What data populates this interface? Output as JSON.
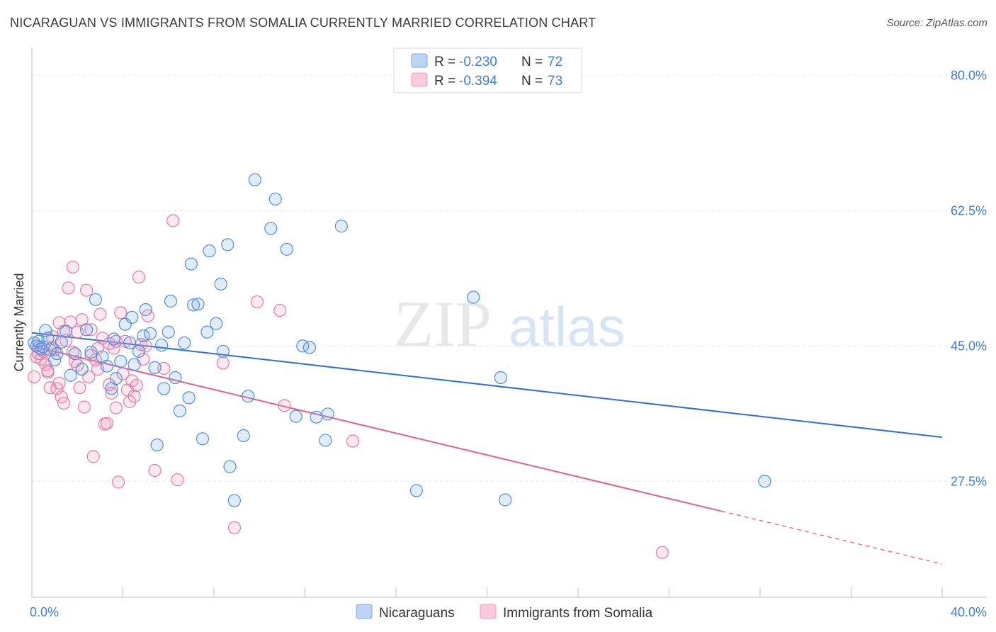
{
  "title": "NICARAGUAN VS IMMIGRANTS FROM SOMALIA CURRENTLY MARRIED CORRELATION CHART",
  "source": "Source: ZipAtlas.com",
  "watermark": {
    "zip": "ZIP",
    "atlas": "atlas"
  },
  "colors": {
    "blue": "#4f8fe0",
    "blue_fill": "rgba(120,170,235,0.22)",
    "blue_line": "#2f6fd0",
    "pink": "#e87aa0",
    "pink_fill": "rgba(240,150,185,0.22)",
    "pink_line": "#e0608e"
  },
  "legend": {
    "r_label": "R =",
    "n_label": "N =",
    "blue": {
      "r": "-0.230",
      "n": "72"
    },
    "pink": {
      "r": "-0.394",
      "n": "73"
    }
  },
  "chart_data": {
    "type": "scatter",
    "title": "NICARAGUAN VS IMMIGRANTS FROM SOMALIA CURRENTLY MARRIED CORRELATION CHART",
    "xlabel": "",
    "ylabel": "Currently Married",
    "xlim": [
      0,
      40
    ],
    "ylim": [
      12.5,
      82.5
    ],
    "x_tick_labels": [
      "0.0%",
      "40.0%"
    ],
    "y_ticks": [
      27.5,
      45.0,
      62.5,
      80.0
    ],
    "y_tick_labels": [
      "27.5%",
      "45.0%",
      "62.5%",
      "80.0%"
    ],
    "grid": true,
    "legend_position": "top-center",
    "series": [
      {
        "name": "Nicaraguans",
        "trend": {
          "x0": 0,
          "y0": 46.7,
          "x1": 40,
          "y1": 33.2,
          "solid_until": 40
        },
        "points": [
          [
            0.1,
            45.4
          ],
          [
            0.2,
            45.0
          ],
          [
            0.3,
            45.6
          ],
          [
            0.4,
            44.6
          ],
          [
            0.5,
            44.9
          ],
          [
            0.6,
            47.0
          ],
          [
            0.7,
            46.0
          ],
          [
            0.8,
            44.5
          ],
          [
            1.0,
            43.2
          ],
          [
            1.1,
            44.0
          ],
          [
            1.3,
            45.5
          ],
          [
            1.5,
            46.9
          ],
          [
            1.7,
            41.2
          ],
          [
            1.9,
            44.0
          ],
          [
            2.2,
            42.0
          ],
          [
            2.4,
            47.1
          ],
          [
            2.6,
            44.2
          ],
          [
            2.8,
            51.0
          ],
          [
            3.1,
            43.6
          ],
          [
            3.3,
            42.4
          ],
          [
            3.5,
            39.5
          ],
          [
            3.6,
            45.9
          ],
          [
            3.7,
            40.8
          ],
          [
            3.9,
            43.0
          ],
          [
            4.1,
            47.8
          ],
          [
            4.3,
            45.4
          ],
          [
            4.4,
            48.7
          ],
          [
            4.5,
            42.6
          ],
          [
            4.7,
            44.3
          ],
          [
            4.9,
            46.3
          ],
          [
            5.0,
            49.7
          ],
          [
            5.2,
            46.6
          ],
          [
            5.4,
            42.2
          ],
          [
            5.5,
            32.2
          ],
          [
            5.7,
            45.1
          ],
          [
            5.8,
            39.5
          ],
          [
            6.0,
            46.8
          ],
          [
            6.1,
            50.8
          ],
          [
            6.3,
            40.9
          ],
          [
            6.5,
            36.6
          ],
          [
            6.7,
            45.4
          ],
          [
            6.9,
            38.3
          ],
          [
            7.0,
            55.6
          ],
          [
            7.1,
            50.3
          ],
          [
            7.3,
            50.4
          ],
          [
            7.5,
            33.0
          ],
          [
            7.7,
            46.8
          ],
          [
            7.8,
            57.3
          ],
          [
            8.1,
            47.9
          ],
          [
            8.3,
            53.0
          ],
          [
            8.4,
            44.3
          ],
          [
            8.6,
            58.1
          ],
          [
            8.7,
            29.4
          ],
          [
            8.9,
            25.0
          ],
          [
            9.3,
            33.4
          ],
          [
            9.5,
            38.5
          ],
          [
            9.8,
            66.5
          ],
          [
            10.5,
            60.2
          ],
          [
            10.7,
            64.0
          ],
          [
            11.2,
            57.5
          ],
          [
            11.6,
            35.9
          ],
          [
            11.9,
            45.0
          ],
          [
            12.2,
            44.8
          ],
          [
            12.5,
            35.8
          ],
          [
            12.9,
            32.8
          ],
          [
            13.0,
            36.2
          ],
          [
            13.6,
            60.5
          ],
          [
            16.9,
            26.3
          ],
          [
            19.4,
            51.3
          ],
          [
            20.6,
            40.9
          ],
          [
            20.8,
            25.1
          ],
          [
            32.2,
            27.5
          ]
        ]
      },
      {
        "name": "Immigrants from Somalia",
        "trend": {
          "x0": 0,
          "y0": 45.0,
          "x1": 40,
          "y1": 16.8,
          "solid_until": 30.3
        },
        "points": [
          [
            0.1,
            41.0
          ],
          [
            0.2,
            43.6
          ],
          [
            0.3,
            44.8
          ],
          [
            0.4,
            43.3
          ],
          [
            0.5,
            44.3
          ],
          [
            0.6,
            42.6
          ],
          [
            0.7,
            41.6
          ],
          [
            0.8,
            39.6
          ],
          [
            0.9,
            46.2
          ],
          [
            1.0,
            44.5
          ],
          [
            1.1,
            39.5
          ],
          [
            1.2,
            40.2
          ],
          [
            1.3,
            38.4
          ],
          [
            1.4,
            37.6
          ],
          [
            1.5,
            45.7
          ],
          [
            1.6,
            52.5
          ],
          [
            1.7,
            48.1
          ],
          [
            1.8,
            55.2
          ],
          [
            1.9,
            43.0
          ],
          [
            2.0,
            46.8
          ],
          [
            2.1,
            39.6
          ],
          [
            2.2,
            48.4
          ],
          [
            2.3,
            37.1
          ],
          [
            2.4,
            52.2
          ],
          [
            2.5,
            41.0
          ],
          [
            2.6,
            47.1
          ],
          [
            2.7,
            30.7
          ],
          [
            2.8,
            43.2
          ],
          [
            2.9,
            42.0
          ],
          [
            3.0,
            49.1
          ],
          [
            3.1,
            46.0
          ],
          [
            3.2,
            34.9
          ],
          [
            3.3,
            35.0
          ],
          [
            3.4,
            45.3
          ],
          [
            3.5,
            38.9
          ],
          [
            3.6,
            44.7
          ],
          [
            3.7,
            37.0
          ],
          [
            3.8,
            27.4
          ],
          [
            3.9,
            49.3
          ],
          [
            4.0,
            41.4
          ],
          [
            4.1,
            45.6
          ],
          [
            4.2,
            39.3
          ],
          [
            4.3,
            37.8
          ],
          [
            4.4,
            40.5
          ],
          [
            4.5,
            38.5
          ],
          [
            4.6,
            39.9
          ],
          [
            4.7,
            53.9
          ],
          [
            4.8,
            45.2
          ],
          [
            5.0,
            45.0
          ],
          [
            5.1,
            48.9
          ],
          [
            5.4,
            28.9
          ],
          [
            5.8,
            42.1
          ],
          [
            6.2,
            61.2
          ],
          [
            6.4,
            27.7
          ],
          [
            8.4,
            42.8
          ],
          [
            8.9,
            21.5
          ],
          [
            9.9,
            50.7
          ],
          [
            10.9,
            49.6
          ],
          [
            11.1,
            37.3
          ],
          [
            14.1,
            32.7
          ],
          [
            27.7,
            18.3
          ],
          [
            1.2,
            48.0
          ],
          [
            2.0,
            42.5
          ],
          [
            3.4,
            40.0
          ],
          [
            0.7,
            41.8
          ],
          [
            1.8,
            44.2
          ],
          [
            2.9,
            44.7
          ],
          [
            0.3,
            44.0
          ],
          [
            1.4,
            46.9
          ],
          [
            2.6,
            43.8
          ],
          [
            4.9,
            43.3
          ],
          [
            3.7,
            45.6
          ],
          [
            0.9,
            44.8
          ]
        ]
      }
    ]
  },
  "bottom_legend": {
    "blue": "Nicaraguans",
    "pink": "Immigrants from Somalia"
  }
}
